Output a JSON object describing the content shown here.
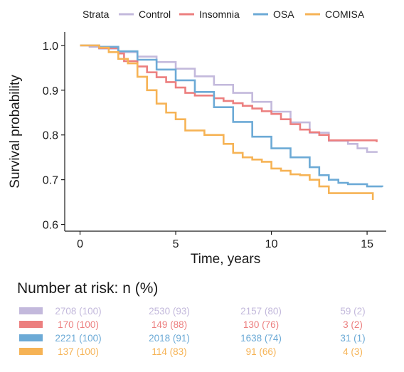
{
  "chart_data": {
    "type": "line",
    "step": true,
    "xlabel": "Time, years",
    "ylabel": "Survival probability",
    "xlim": [
      -0.8,
      16.0
    ],
    "ylim": [
      0.585,
      1.03
    ],
    "xticks": [
      0,
      5,
      10,
      15
    ],
    "yticks": [
      0.6,
      0.7,
      0.8,
      0.9,
      1.0
    ],
    "ytick_labels": [
      "0.6",
      "0.7",
      "0.8",
      "0.9",
      "1.0"
    ],
    "grid": false,
    "legend": {
      "title": "Strata",
      "placement": "top",
      "entries": [
        "Control",
        "Insomnia",
        "OSA",
        "COMISA"
      ]
    },
    "series": [
      {
        "name": "Control",
        "color": "#c3b9dc",
        "x": [
          0,
          0.5,
          1,
          2,
          3,
          4,
          5,
          6,
          7,
          8,
          9,
          10,
          11,
          12,
          13,
          14,
          14.5,
          15,
          15.5
        ],
        "y": [
          1.0,
          0.997,
          0.993,
          0.985,
          0.975,
          0.963,
          0.948,
          0.931,
          0.912,
          0.894,
          0.874,
          0.852,
          0.828,
          0.805,
          0.787,
          0.78,
          0.77,
          0.762,
          0.76
        ]
      },
      {
        "name": "Insomnia",
        "color": "#ec7f7f",
        "x": [
          0,
          1,
          2,
          2.3,
          3,
          3.5,
          4,
          4.5,
          5,
          5.5,
          6,
          7,
          7.5,
          8,
          8.5,
          9,
          9.5,
          10,
          10.5,
          11,
          11.5,
          12,
          12.5,
          13,
          15.5
        ],
        "y": [
          1.0,
          0.994,
          0.982,
          0.965,
          0.953,
          0.94,
          0.929,
          0.918,
          0.906,
          0.894,
          0.888,
          0.882,
          0.876,
          0.871,
          0.865,
          0.859,
          0.853,
          0.847,
          0.835,
          0.824,
          0.812,
          0.806,
          0.8,
          0.788,
          0.784
        ]
      },
      {
        "name": "OSA",
        "color": "#6caad6",
        "x": [
          0,
          1,
          2,
          3,
          4,
          5,
          6,
          7,
          8,
          9,
          10,
          11,
          12,
          12.5,
          13,
          13.5,
          14,
          15,
          15.8
        ],
        "y": [
          1.0,
          0.997,
          0.987,
          0.968,
          0.946,
          0.922,
          0.896,
          0.862,
          0.829,
          0.796,
          0.77,
          0.75,
          0.728,
          0.71,
          0.7,
          0.693,
          0.69,
          0.685,
          0.684
        ]
      },
      {
        "name": "COMISA",
        "color": "#f6b355",
        "x": [
          0,
          1,
          1.5,
          2,
          2.5,
          3,
          3.5,
          4,
          4.5,
          5,
          5.5,
          6,
          6.5,
          7,
          7.5,
          8,
          8.5,
          9,
          9.5,
          10,
          10.5,
          11,
          11.5,
          12,
          12.5,
          13,
          15.3
        ],
        "y": [
          1.0,
          0.995,
          0.985,
          0.97,
          0.96,
          0.93,
          0.9,
          0.87,
          0.85,
          0.835,
          0.81,
          0.81,
          0.8,
          0.8,
          0.78,
          0.76,
          0.75,
          0.745,
          0.74,
          0.725,
          0.72,
          0.712,
          0.71,
          0.7,
          0.685,
          0.67,
          0.655
        ]
      }
    ]
  },
  "risk_table": {
    "title": "Number at risk: n (%)",
    "times": [
      0,
      5,
      10,
      15
    ],
    "rows": [
      {
        "name": "Control",
        "color": "#c3b9dc",
        "cells": [
          "2708 (100)",
          "2530 (93)",
          "2157 (80)",
          "59 (2)"
        ]
      },
      {
        "name": "Insomnia",
        "color": "#ec7f7f",
        "cells": [
          "170 (100)",
          "149 (88)",
          "130 (76)",
          "3 (2)"
        ]
      },
      {
        "name": "OSA",
        "color": "#6caad6",
        "cells": [
          "2221 (100)",
          "2018 (91)",
          "1638 (74)",
          "31 (1)"
        ]
      },
      {
        "name": "COMISA",
        "color": "#f6b355",
        "cells": [
          "137 (100)",
          "114 (83)",
          "91 (66)",
          "4 (3)"
        ]
      }
    ]
  }
}
